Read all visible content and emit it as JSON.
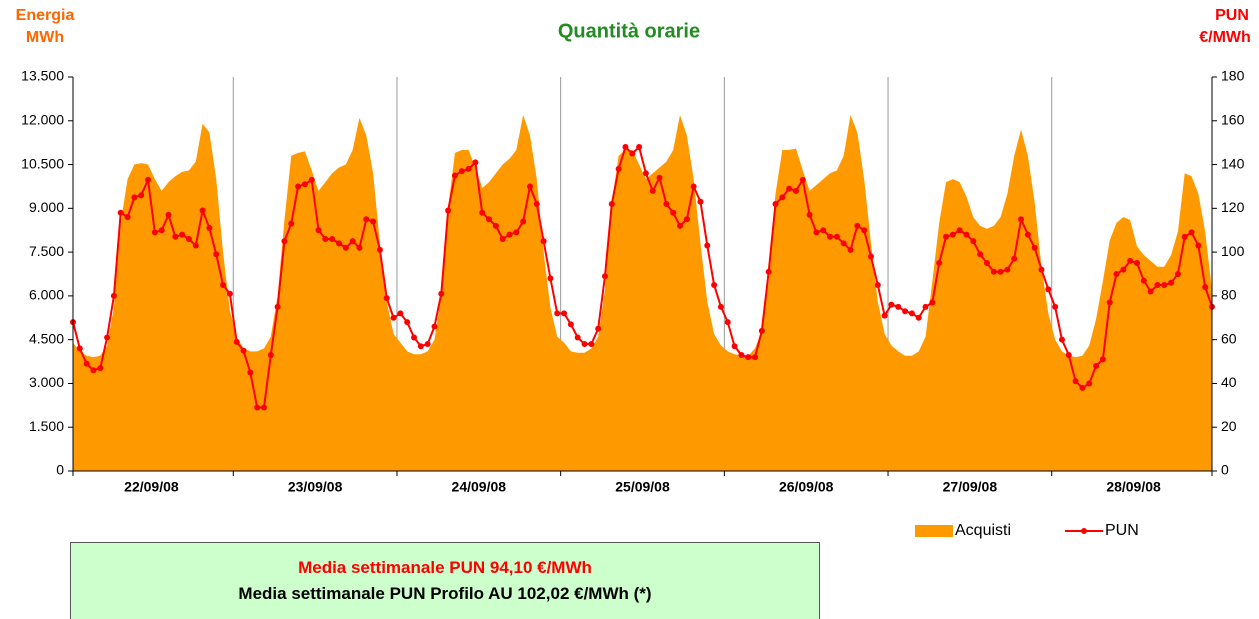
{
  "chart_data": {
    "type": "area_line",
    "title": "Quantità orarie",
    "ylabel": [
      "Energia",
      "MWh"
    ],
    "y2label": [
      "PUN",
      "€/MWh"
    ],
    "categories": [
      null,
      null,
      null,
      null,
      null,
      null,
      null,
      null,
      null,
      null,
      null,
      null,
      "22/09/08",
      null,
      null,
      null,
      null,
      null,
      null,
      null,
      null,
      null,
      null,
      null,
      null,
      null,
      null,
      null,
      null,
      null,
      null,
      null,
      null,
      null,
      null,
      null,
      "23/09/08",
      null,
      null,
      null,
      null,
      null,
      null,
      null,
      null,
      null,
      null,
      null,
      null,
      null,
      null,
      null,
      null,
      null,
      null,
      null,
      null,
      null,
      null,
      null,
      "24/09/08",
      null,
      null,
      null,
      null,
      null,
      null,
      null,
      null,
      null,
      null,
      null,
      null,
      null,
      null,
      null,
      null,
      null,
      null,
      null,
      null,
      null,
      null,
      null,
      "25/09/08",
      null,
      null,
      null,
      null,
      null,
      null,
      null,
      null,
      null,
      null,
      null,
      null,
      null,
      null,
      null,
      null,
      null,
      null,
      null,
      null,
      null,
      null,
      null,
      "26/09/08",
      null,
      null,
      null,
      null,
      null,
      null,
      null,
      null,
      null,
      null,
      null,
      null,
      null,
      null,
      null,
      null,
      null,
      null,
      null,
      null,
      null,
      null,
      null,
      "27/09/08",
      null,
      null,
      null,
      null,
      null,
      null,
      null,
      null,
      null,
      null,
      null,
      null,
      null,
      null,
      null,
      null,
      null,
      null,
      null,
      null,
      null,
      null,
      null,
      "28/09/08",
      null,
      null,
      null,
      null,
      null,
      null,
      null,
      null,
      null,
      null,
      null
    ],
    "series": [
      {
        "name": "Acquisti",
        "color": "#ff9900",
        "kind": "area",
        "axis": "y",
        "values": [
          4400,
          4100,
          3950,
          3900,
          3950,
          4300,
          5600,
          8500,
          10000,
          10500,
          10550,
          10500,
          10000,
          9600,
          9900,
          10100,
          10250,
          10300,
          10600,
          11900,
          11600,
          10000,
          7500,
          5500,
          4600,
          4200,
          4100,
          4100,
          4200,
          4600,
          6000,
          8600,
          10800,
          10900,
          10950,
          10300,
          9600,
          9900,
          10200,
          10400,
          10500,
          11000,
          12100,
          11500,
          10200,
          7800,
          5800,
          4700,
          4400,
          4100,
          4000,
          4000,
          4100,
          4500,
          6000,
          9000,
          10900,
          11000,
          11000,
          10400,
          9700,
          9900,
          10200,
          10500,
          10700,
          11000,
          12200,
          11500,
          10000,
          7500,
          5600,
          4600,
          4400,
          4100,
          4050,
          4050,
          4200,
          4600,
          6200,
          9200,
          10800,
          11000,
          11000,
          10500,
          10000,
          10200,
          10400,
          10600,
          11000,
          12200,
          11500,
          10000,
          7800,
          5800,
          4700,
          4300,
          4100,
          4000,
          3950,
          3950,
          4200,
          4800,
          6500,
          9500,
          11000,
          11000,
          11050,
          10300,
          9600,
          9800,
          10000,
          10200,
          10300,
          10800,
          12200,
          11600,
          10000,
          7800,
          5800,
          4700,
          4300,
          4100,
          3950,
          3950,
          4100,
          4600,
          6500,
          8500,
          9900,
          10000,
          9900,
          9400,
          8700,
          8400,
          8300,
          8400,
          8700,
          9500,
          10800,
          11700,
          10800,
          9200,
          7000,
          5400,
          4500,
          4100,
          3950,
          3900,
          3950,
          4300,
          5200,
          6500,
          7900,
          8500,
          8700,
          8600,
          7700,
          7400,
          7200,
          7000,
          7000,
          7400,
          8200,
          10200,
          10100,
          9500,
          8200,
          6200
        ]
      },
      {
        "name": "PUN",
        "color": "#ff0000",
        "kind": "line",
        "axis": "y2",
        "values": [
          68,
          56,
          49,
          46,
          47,
          61,
          80,
          118,
          116,
          125,
          126,
          133,
          109,
          110,
          117,
          107,
          108,
          106,
          103,
          119,
          111,
          99,
          85,
          81,
          59,
          55,
          45,
          29,
          29,
          53,
          75,
          105,
          113,
          130,
          131,
          133,
          110,
          106,
          106,
          104,
          102,
          105,
          102,
          115,
          114,
          101,
          79,
          70,
          72,
          68,
          61,
          57,
          58,
          66,
          81,
          119,
          135,
          137,
          138,
          141,
          118,
          115,
          112,
          106,
          108,
          109,
          114,
          130,
          122,
          105,
          88,
          72,
          72,
          67,
          61,
          58,
          58,
          65,
          89,
          122,
          138,
          148,
          145,
          148,
          136,
          128,
          134,
          122,
          118,
          112,
          115,
          130,
          123,
          103,
          85,
          75,
          68,
          57,
          53,
          52,
          52,
          64,
          91,
          122,
          125,
          129,
          128,
          133,
          117,
          109,
          110,
          107,
          107,
          104,
          101,
          112,
          110,
          98,
          85,
          71,
          76,
          75,
          73,
          72,
          70,
          75,
          77,
          95,
          107,
          108,
          110,
          108,
          105,
          99,
          95,
          91,
          91,
          92,
          97,
          115,
          108,
          102,
          92,
          83,
          75,
          60,
          53,
          41,
          38,
          40,
          48,
          51,
          77,
          90,
          92,
          96,
          95,
          87,
          82,
          85,
          85,
          86,
          90,
          107,
          109,
          103,
          84,
          75
        ]
      }
    ],
    "ylim": [
      0,
      13500
    ],
    "yticks": [
      0,
      {
        "value": 1500,
        "label": "1.500"
      },
      {
        "value": 3000,
        "label": "3.000"
      },
      {
        "value": 4500,
        "label": "4.500"
      },
      {
        "value": 6000,
        "label": "6.000"
      },
      {
        "value": 7500,
        "label": "7.500"
      },
      {
        "value": 9000,
        "label": "9.000"
      },
      {
        "value": 10500,
        "label": "10.500"
      },
      {
        "value": 12000,
        "label": "12.000"
      },
      {
        "value": 13500,
        "label": "13.500"
      }
    ],
    "y2lim": [
      0,
      180
    ],
    "y2ticks": [
      0,
      20,
      40,
      60,
      80,
      100,
      120,
      140,
      160,
      180
    ],
    "legend": "bottom-right",
    "annotations": [
      "Media settimanale PUN 94,10 €/MWh",
      "Media settimanale PUN Profilo AU 102,02 €/MWh (*)"
    ]
  }
}
